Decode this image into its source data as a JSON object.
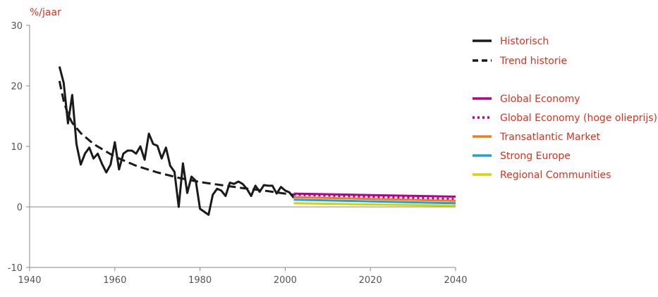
{
  "chart_data": {
    "type": "line",
    "ylabel": "%/jaar",
    "xlabel": "",
    "xlim": [
      1940,
      2040
    ],
    "ylim": [
      -10,
      30
    ],
    "x_ticks": [
      1940,
      1960,
      1980,
      2000,
      2020,
      2040
    ],
    "y_ticks": [
      -10,
      0,
      10,
      20,
      30
    ],
    "grid": false,
    "legend_position": "right",
    "series": [
      {
        "name": "Historisch",
        "color": "#1a1a1a",
        "style": "solid",
        "x": [
          1947,
          1948,
          1949,
          1950,
          1951,
          1952,
          1953,
          1954,
          1955,
          1956,
          1957,
          1958,
          1959,
          1960,
          1961,
          1962,
          1963,
          1964,
          1965,
          1966,
          1967,
          1968,
          1969,
          1970,
          1971,
          1972,
          1973,
          1974,
          1975,
          1976,
          1977,
          1978,
          1979,
          1980,
          1981,
          1982,
          1983,
          1984,
          1985,
          1986,
          1987,
          1988,
          1989,
          1990,
          1991,
          1992,
          1993,
          1994,
          1995,
          1996,
          1997,
          1998,
          1999,
          2000,
          2001,
          2002
        ],
        "y": [
          23.2,
          20.5,
          13.8,
          18.5,
          10.4,
          7.0,
          8.8,
          9.8,
          8.0,
          8.8,
          7.1,
          5.7,
          7.0,
          10.7,
          6.2,
          8.8,
          9.3,
          9.3,
          8.8,
          10.0,
          7.8,
          12.1,
          10.4,
          10.1,
          8.0,
          9.8,
          6.8,
          5.8,
          0.0,
          7.2,
          2.3,
          5.0,
          4.3,
          -0.3,
          -0.8,
          -1.3,
          2.0,
          3.0,
          2.7,
          1.8,
          4.0,
          3.8,
          4.2,
          3.8,
          3.0,
          1.8,
          3.5,
          2.5,
          3.6,
          3.5,
          3.5,
          2.2,
          3.3,
          2.7,
          2.4,
          1.5
        ]
      },
      {
        "name": "Trend historie",
        "color": "#1a1a1a",
        "style": "dashed",
        "x": [
          1947,
          1948,
          1949,
          1950,
          1952,
          1955,
          1960,
          1965,
          1970,
          1975,
          1980,
          1985,
          1990,
          1995,
          2000,
          2002
        ],
        "y": [
          20.8,
          17.5,
          15.3,
          13.9,
          12.2,
          10.4,
          8.3,
          6.8,
          5.7,
          4.8,
          4.1,
          3.6,
          3.1,
          2.7,
          2.2,
          2.0
        ]
      },
      {
        "name": "Global Economy",
        "color": "#b5008f",
        "style": "solid",
        "x": [
          2002,
          2040
        ],
        "y": [
          2.2,
          1.7
        ]
      },
      {
        "name": "Global Economy (hoge olieprijs)",
        "color": "#b5008f",
        "style": "dotted",
        "x": [
          2002,
          2040
        ],
        "y": [
          2.0,
          1.3
        ]
      },
      {
        "name": "Transatlantic Market",
        "color": "#f07d1a",
        "style": "solid",
        "x": [
          2002,
          2040
        ],
        "y": [
          1.6,
          1.0
        ]
      },
      {
        "name": "Strong Europe",
        "color": "#1aa3e0",
        "style": "solid",
        "x": [
          2002,
          2040
        ],
        "y": [
          1.2,
          0.6
        ]
      },
      {
        "name": "Regional Communities",
        "color": "#d4d400",
        "style": "solid",
        "x": [
          2002,
          2040
        ],
        "y": [
          0.6,
          0.2
        ]
      }
    ]
  }
}
